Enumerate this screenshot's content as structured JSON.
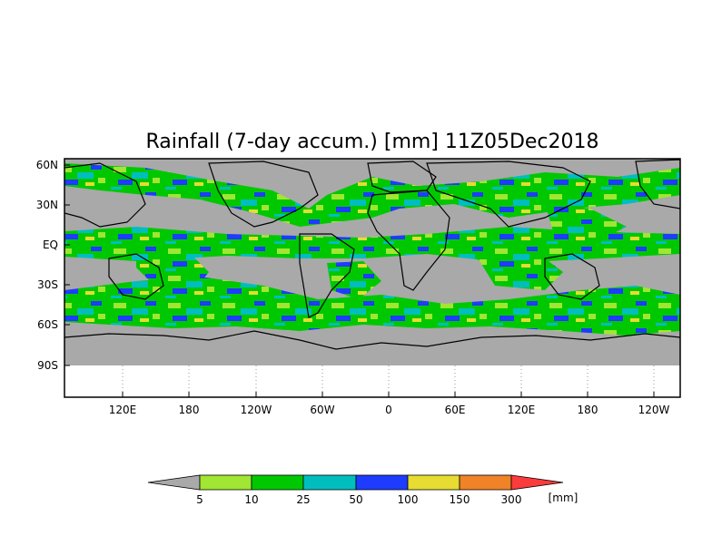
{
  "title": "Rainfall (7-day accum.) [mm] 11Z05Dec2018",
  "y_ticks": [
    "60N",
    "30N",
    "EQ",
    "30S",
    "60S",
    "90S"
  ],
  "x_ticks": [
    "120E",
    "180",
    "120W",
    "60W",
    "0",
    "60E",
    "120E",
    "180",
    "120W"
  ],
  "colorbar": {
    "thresholds": [
      "5",
      "10",
      "25",
      "50",
      "100",
      "150",
      "300"
    ],
    "unit": "[mm]",
    "under_color": "#a9a9a9",
    "colors": [
      "#a0e632",
      "#00c800",
      "#00bebe",
      "#1e3cff",
      "#e6dc32",
      "#f08228",
      "#fa3c3c"
    ]
  },
  "colors": {
    "land_no_rain": "#a9a9a9",
    "coast": "#000000"
  }
}
